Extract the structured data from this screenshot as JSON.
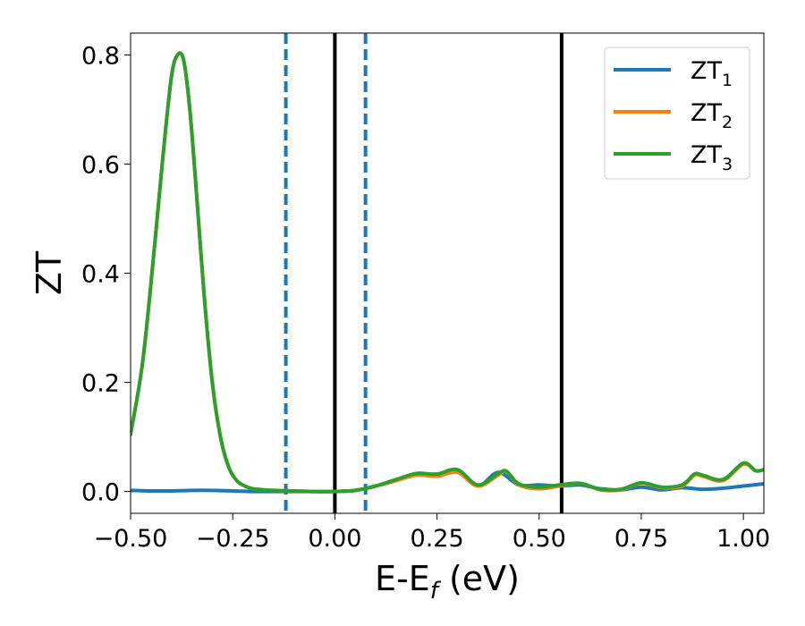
{
  "chart_data": {
    "type": "line",
    "xlabel": "E-E",
    "xlabel_sub": "f",
    "xlabel_suffix": " (eV)",
    "ylabel": "ZT",
    "xlim": [
      -0.5,
      1.05
    ],
    "ylim": [
      -0.04,
      0.84
    ],
    "x_ticks": [
      -0.5,
      -0.25,
      0.0,
      0.25,
      0.5,
      0.75,
      1.0
    ],
    "x_tick_labels": [
      "−0.50",
      "−0.25",
      "0.00",
      "0.25",
      "0.50",
      "0.75",
      "1.00"
    ],
    "y_ticks": [
      0.0,
      0.2,
      0.4,
      0.6,
      0.8
    ],
    "y_tick_labels": [
      "0.0",
      "0.2",
      "0.4",
      "0.6",
      "0.8"
    ],
    "grid": false,
    "legend_position": "top-right",
    "colors": {
      "ZT1": "#1f77b4",
      "ZT2": "#ff7f0e",
      "ZT3": "#2ca02c",
      "ref_line": "#000000",
      "dashed_line": "#1f77b4"
    },
    "vlines": [
      {
        "x": -0.12,
        "style": "dashed",
        "color": "#1f77b4"
      },
      {
        "x": 0.0,
        "style": "solid",
        "color": "#000000"
      },
      {
        "x": 0.075,
        "style": "dashed",
        "color": "#1f77b4"
      },
      {
        "x": 0.555,
        "style": "solid",
        "color": "#000000"
      }
    ],
    "series": [
      {
        "name": "ZT",
        "sub": "1",
        "color": "#1f77b4",
        "x": [
          -0.5,
          -0.45,
          -0.4,
          -0.35,
          -0.3,
          -0.25,
          -0.2,
          -0.15,
          -0.1,
          -0.05,
          0.0,
          0.05,
          0.1,
          0.15,
          0.2,
          0.25,
          0.3,
          0.35,
          0.4,
          0.45,
          0.5,
          0.55,
          0.6,
          0.65,
          0.7,
          0.75,
          0.8,
          0.85,
          0.9,
          0.95,
          1.0,
          1.05
        ],
        "y": [
          0.002,
          0.001,
          0.001,
          0.002,
          0.002,
          0.001,
          0.0,
          0.0,
          0.0,
          0.0,
          0.0,
          0.002,
          0.01,
          0.02,
          0.033,
          0.03,
          0.037,
          0.01,
          0.035,
          0.012,
          0.012,
          0.01,
          0.012,
          0.005,
          0.003,
          0.008,
          0.003,
          0.007,
          0.004,
          0.006,
          0.01,
          0.014
        ]
      },
      {
        "name": "ZT",
        "sub": "2",
        "color": "#ff7f0e",
        "x": [
          -0.5,
          -0.47,
          -0.44,
          -0.42,
          -0.4,
          -0.385,
          -0.37,
          -0.355,
          -0.34,
          -0.32,
          -0.3,
          -0.28,
          -0.26,
          -0.24,
          -0.22,
          -0.2,
          -0.15,
          -0.1,
          -0.05,
          0.0,
          0.05,
          0.1,
          0.15,
          0.2,
          0.25,
          0.3,
          0.35,
          0.4,
          0.42,
          0.45,
          0.5,
          0.55,
          0.6,
          0.65,
          0.7,
          0.75,
          0.8,
          0.85,
          0.88,
          0.9,
          0.95,
          1.0,
          1.03,
          1.05
        ],
        "y": [
          0.105,
          0.24,
          0.46,
          0.62,
          0.76,
          0.8,
          0.79,
          0.7,
          0.56,
          0.36,
          0.2,
          0.1,
          0.045,
          0.02,
          0.01,
          0.005,
          0.002,
          0.001,
          0.0,
          0.0,
          0.002,
          0.01,
          0.02,
          0.03,
          0.028,
          0.035,
          0.01,
          0.03,
          0.037,
          0.012,
          0.005,
          0.01,
          0.015,
          0.003,
          0.003,
          0.015,
          0.007,
          0.01,
          0.03,
          0.028,
          0.02,
          0.05,
          0.038,
          0.04
        ]
      },
      {
        "name": "ZT",
        "sub": "3",
        "color": "#2ca02c",
        "x": [
          -0.5,
          -0.47,
          -0.44,
          -0.42,
          -0.4,
          -0.385,
          -0.37,
          -0.355,
          -0.34,
          -0.32,
          -0.3,
          -0.28,
          -0.26,
          -0.24,
          -0.22,
          -0.2,
          -0.15,
          -0.1,
          -0.05,
          0.0,
          0.05,
          0.1,
          0.15,
          0.2,
          0.25,
          0.3,
          0.35,
          0.4,
          0.42,
          0.45,
          0.5,
          0.55,
          0.6,
          0.65,
          0.7,
          0.75,
          0.8,
          0.85,
          0.88,
          0.9,
          0.95,
          1.0,
          1.03,
          1.05
        ],
        "y": [
          0.105,
          0.24,
          0.46,
          0.62,
          0.76,
          0.8,
          0.79,
          0.7,
          0.56,
          0.36,
          0.2,
          0.1,
          0.045,
          0.02,
          0.01,
          0.005,
          0.002,
          0.001,
          0.0,
          0.0,
          0.002,
          0.01,
          0.022,
          0.033,
          0.032,
          0.04,
          0.012,
          0.033,
          0.037,
          0.014,
          0.008,
          0.012,
          0.015,
          0.004,
          0.004,
          0.016,
          0.008,
          0.012,
          0.032,
          0.03,
          0.022,
          0.052,
          0.038,
          0.04
        ]
      }
    ]
  }
}
